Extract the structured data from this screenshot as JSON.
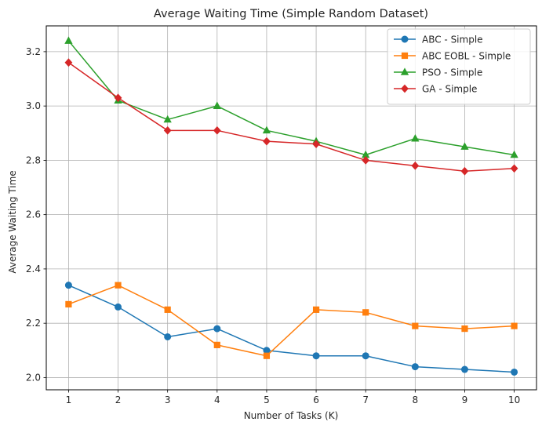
{
  "chart_data": {
    "type": "line",
    "title": "Average Waiting Time (Simple Random Dataset)",
    "xlabel": "Number of Tasks (K)",
    "ylabel": "Average Waiting Time",
    "x": [
      1,
      2,
      3,
      4,
      5,
      6,
      7,
      8,
      9,
      10
    ],
    "xticks": [
      "1",
      "2",
      "3",
      "4",
      "5",
      "6",
      "7",
      "8",
      "9",
      "10"
    ],
    "yticks": [
      "2.0",
      "2.2",
      "2.4",
      "2.6",
      "2.8",
      "3.0",
      "3.2"
    ],
    "xlim": [
      0.55,
      10.45
    ],
    "ylim": [
      1.955,
      3.295
    ],
    "grid": true,
    "legend_position": "top-right",
    "series": [
      {
        "name": "ABC - Simple",
        "color": "#1f77b4",
        "marker": "circle",
        "values": [
          2.34,
          2.26,
          2.15,
          2.18,
          2.1,
          2.08,
          2.08,
          2.04,
          2.03,
          2.02
        ]
      },
      {
        "name": "ABC EOBL - Simple",
        "color": "#ff7f0e",
        "marker": "square",
        "values": [
          2.27,
          2.34,
          2.25,
          2.12,
          2.08,
          2.25,
          2.24,
          2.19,
          2.18,
          2.19
        ]
      },
      {
        "name": "PSO - Simple",
        "color": "#2ca02c",
        "marker": "triangle",
        "values": [
          3.24,
          3.02,
          2.95,
          3.0,
          2.91,
          2.87,
          2.82,
          2.88,
          2.85,
          2.82
        ]
      },
      {
        "name": "GA - Simple",
        "color": "#d62728",
        "marker": "diamond",
        "values": [
          3.16,
          3.03,
          2.91,
          2.91,
          2.87,
          2.86,
          2.8,
          2.78,
          2.76,
          2.77
        ]
      }
    ]
  }
}
